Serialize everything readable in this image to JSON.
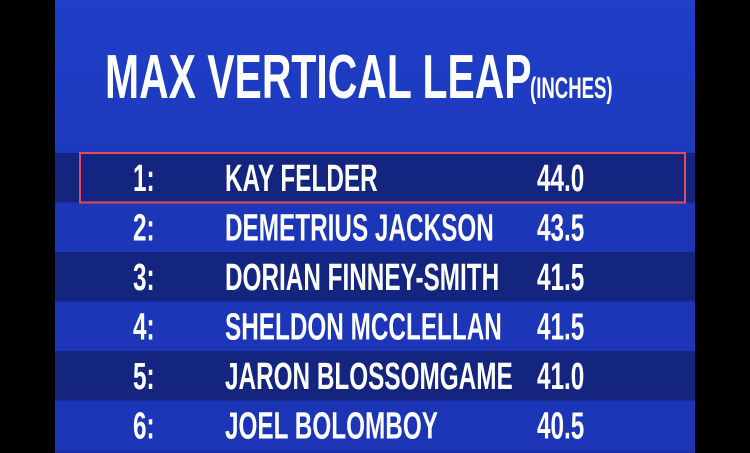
{
  "header": {
    "title": "MAX VERTICAL LEAP",
    "unit": "(INCHES)"
  },
  "table": {
    "rows": [
      [
        "1:",
        "KAY FELDER",
        "44.0"
      ],
      [
        "2:",
        "DEMETRIUS JACKSON",
        "43.5"
      ],
      [
        "3:",
        "DORIAN FINNEY-SMITH",
        "41.5"
      ],
      [
        "4:",
        "SHELDON MCCLELLAN",
        "41.5"
      ],
      [
        "5:",
        "JARON BLOSSOMGAME",
        "41.0"
      ],
      [
        "6:",
        "JOEL BOLOMBOY",
        "40.5"
      ]
    ],
    "highlighted_row": 0
  }
}
